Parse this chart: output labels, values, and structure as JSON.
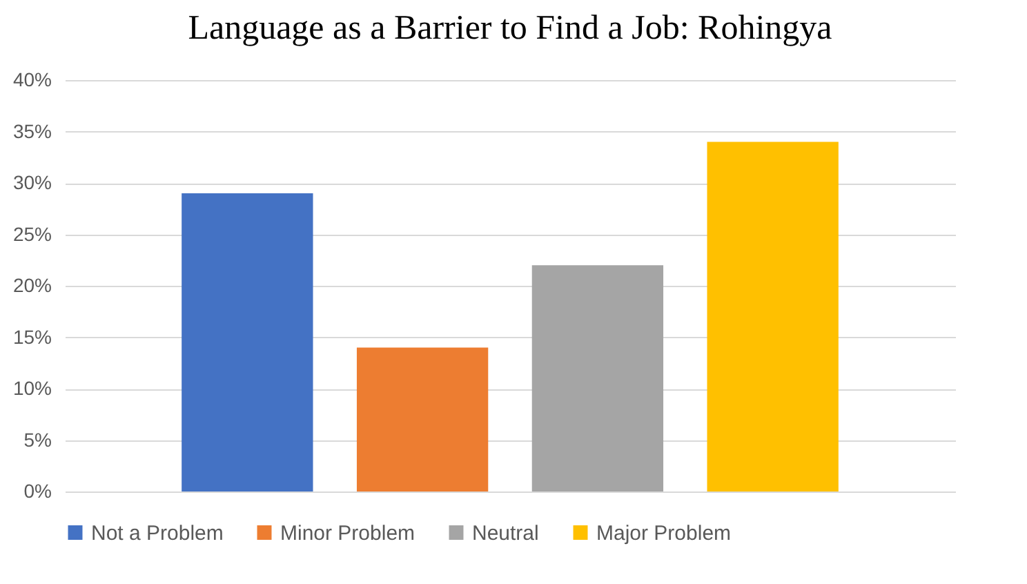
{
  "chart_data": {
    "type": "bar",
    "title": "Language as a Barrier to Find a Job: Rohingya",
    "categories": [
      null
    ],
    "series": [
      {
        "name": "Not a Problem",
        "color": "#4472c4",
        "values": [
          29
        ]
      },
      {
        "name": "Minor Problem",
        "color": "#ed7d31",
        "values": [
          14
        ]
      },
      {
        "name": "Neutral",
        "color": "#a5a5a5",
        "values": [
          22
        ]
      },
      {
        "name": "Major Problem",
        "color": "#ffc000",
        "values": [
          34
        ]
      }
    ],
    "ylim": [
      0,
      40
    ],
    "yticks": [
      {
        "value": 0,
        "label": "0%"
      },
      {
        "value": 5,
        "label": "5%"
      },
      {
        "value": 10,
        "label": "10%"
      },
      {
        "value": 15,
        "label": "15%"
      },
      {
        "value": 20,
        "label": "20%"
      },
      {
        "value": 25,
        "label": "25%"
      },
      {
        "value": 30,
        "label": "30%"
      },
      {
        "value": 35,
        "label": "35%"
      },
      {
        "value": 40,
        "label": "40%"
      }
    ],
    "grid": "y",
    "legend": "bottom"
  }
}
